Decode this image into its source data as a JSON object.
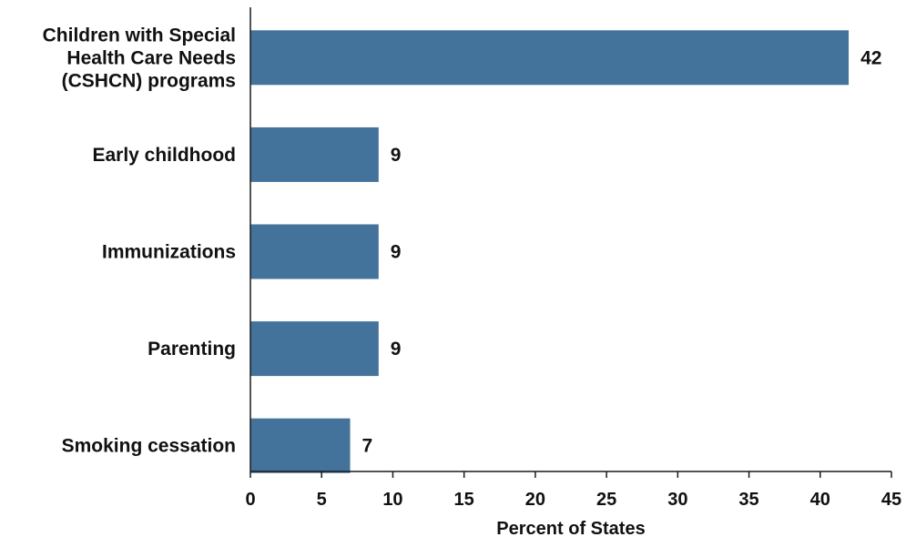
{
  "chart_data": {
    "type": "bar",
    "orientation": "horizontal",
    "categories": [
      [
        "Children with Special",
        "Health Care Needs",
        "(CSHCN) programs"
      ],
      [
        "Early childhood"
      ],
      [
        "Immunizations"
      ],
      [
        "Parenting"
      ],
      [
        "Smoking cessation"
      ]
    ],
    "values": [
      42,
      9,
      9,
      9,
      7
    ],
    "data_labels": [
      "42",
      "9",
      "9",
      "9",
      "7"
    ],
    "xlabel": "Percent of States",
    "ylabel": "",
    "xlim": [
      0,
      45
    ],
    "xticks": [
      0,
      5,
      10,
      15,
      20,
      25,
      30,
      35,
      40,
      45
    ],
    "grid": false,
    "bar_color": "#43729a",
    "axis_color": "#1a1a1a"
  }
}
